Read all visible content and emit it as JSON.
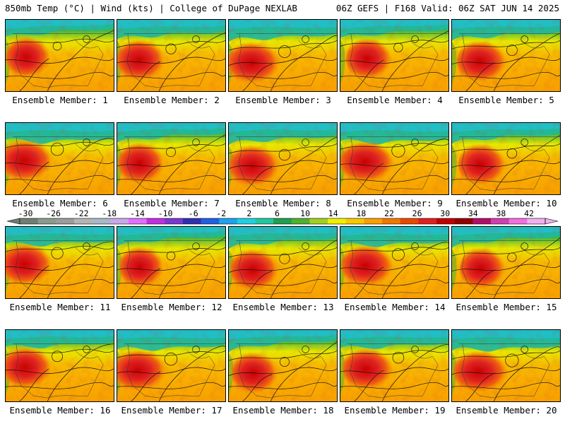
{
  "header": {
    "left": "850mb Temp (°C) | Wind (kts) | College of DuPage NEXLAB",
    "right": "06Z GEFS | F168 Valid: 06Z SAT JUN 14 2025"
  },
  "panels": [
    {
      "label": "Ensemble Member: 1"
    },
    {
      "label": "Ensemble Member: 2"
    },
    {
      "label": "Ensemble Member: 3"
    },
    {
      "label": "Ensemble Member: 4"
    },
    {
      "label": "Ensemble Member: 5"
    },
    {
      "label": "Ensemble Member: 6"
    },
    {
      "label": "Ensemble Member: 7"
    },
    {
      "label": "Ensemble Member: 8"
    },
    {
      "label": "Ensemble Member: 9"
    },
    {
      "label": "Ensemble Member: 10"
    },
    {
      "label": "Ensemble Member: 11"
    },
    {
      "label": "Ensemble Member: 12"
    },
    {
      "label": "Ensemble Member: 13"
    },
    {
      "label": "Ensemble Member: 14"
    },
    {
      "label": "Ensemble Member: 15"
    },
    {
      "label": "Ensemble Member: 16"
    },
    {
      "label": "Ensemble Member: 17"
    },
    {
      "label": "Ensemble Member: 18"
    },
    {
      "label": "Ensemble Member: 19"
    },
    {
      "label": "Ensemble Member: 20"
    }
  ],
  "color_scale": {
    "tick_labels": [
      "-30",
      "-26",
      "-22",
      "-18",
      "-14",
      "-10",
      "-6",
      "-2",
      "2",
      "6",
      "10",
      "14",
      "18",
      "22",
      "26",
      "30",
      "34",
      "38",
      "42"
    ],
    "colors": [
      "#6f7f73",
      "#8a9a8e",
      "#9c9c9c",
      "#b5b5b5",
      "#a8b8c8",
      "#c8a8e8",
      "#e070ff",
      "#c030e0",
      "#7a3ad0",
      "#3030b0",
      "#2060e0",
      "#20a0f0",
      "#20d0e0",
      "#20c8a0",
      "#20a050",
      "#50b030",
      "#a0d020",
      "#f0f000",
      "#f8c800",
      "#f8a000",
      "#f07800",
      "#e84800",
      "#e02020",
      "#c00000",
      "#900000",
      "#b0106a",
      "#d040b0",
      "#f070e0",
      "#f0b0f0"
    ]
  }
}
